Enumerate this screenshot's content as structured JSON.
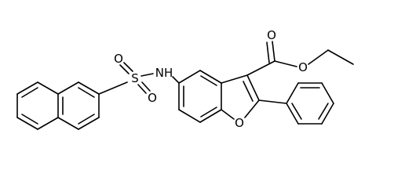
{
  "atoms": [
    {
      "label": "O"
    },
    {
      "label": "O"
    },
    {
      "label": "S"
    },
    {
      "label": "O"
    },
    {
      "label": "O"
    },
    {
      "label": "NH"
    },
    {
      "label": "O"
    }
  ]
}
